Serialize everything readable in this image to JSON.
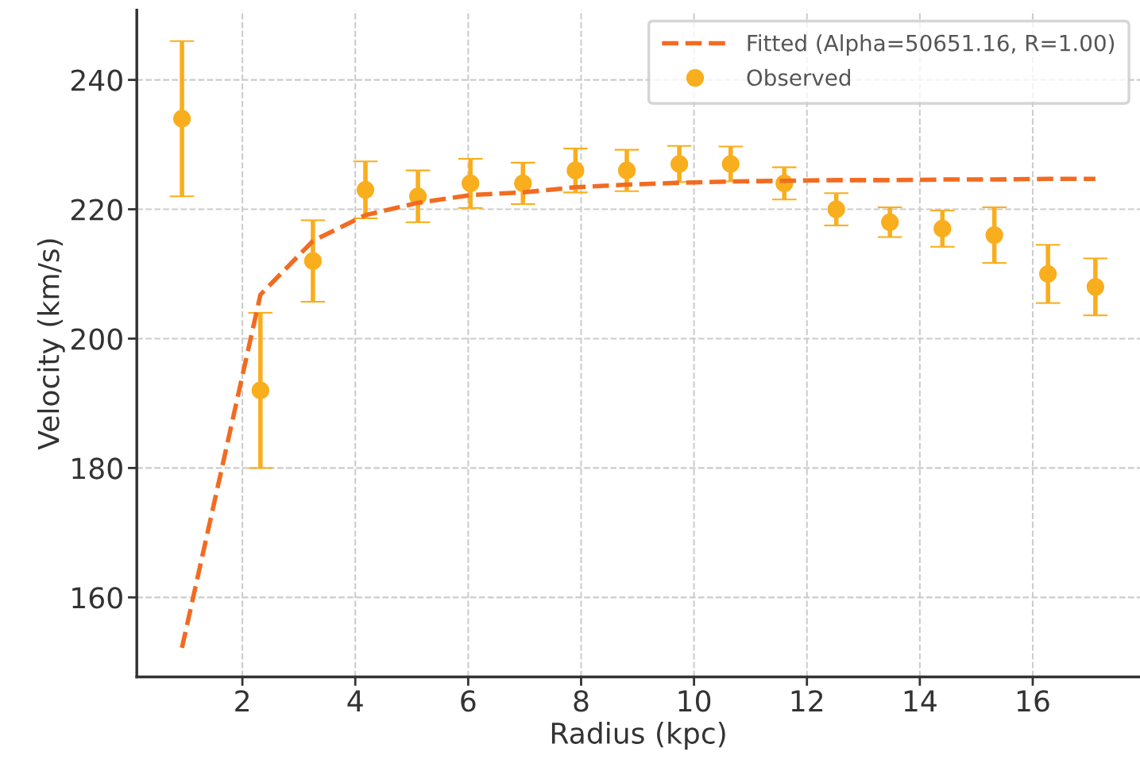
{
  "chart_data": {
    "type": "scatter",
    "xlabel": "Radius (kpc)",
    "ylabel": "Velocity (km/s)",
    "xlim": [
      0.13,
      17.9
    ],
    "ylim": [
      147.7,
      250.8
    ],
    "xticks": [
      2,
      4,
      6,
      8,
      10,
      12,
      14,
      16
    ],
    "yticks": [
      160,
      180,
      200,
      220,
      240
    ],
    "grid": true,
    "legend": "top right",
    "series": [
      {
        "name": "Fitted (Alpha=50651.16, R=1.00)",
        "type": "line",
        "line_style": "dashed",
        "marker": "none",
        "color": "#f26b21",
        "x": [
          0.93,
          2.32,
          3.25,
          4.18,
          5.11,
          6.04,
          6.97,
          7.9,
          8.81,
          9.74,
          10.65,
          11.6,
          12.52,
          13.47,
          14.4,
          15.32,
          16.27,
          17.11
        ],
        "values": [
          152.2,
          206.8,
          215.1,
          219.1,
          221.0,
          222.2,
          222.6,
          223.4,
          223.8,
          224.1,
          224.3,
          224.4,
          224.5,
          224.5,
          224.6,
          224.6,
          224.7,
          224.7
        ]
      },
      {
        "name": "Observed",
        "marker": "circle",
        "color": "#f9ae1d",
        "x": [
          0.93,
          2.32,
          3.25,
          4.18,
          5.11,
          6.04,
          6.97,
          7.9,
          8.81,
          9.74,
          10.65,
          11.6,
          12.52,
          13.47,
          14.4,
          15.32,
          16.27,
          17.11
        ],
        "values": [
          234,
          192,
          212,
          223,
          222,
          224,
          224,
          226,
          226,
          227,
          227,
          224,
          220,
          218,
          217,
          216,
          210,
          208
        ],
        "errors": [
          12,
          12,
          6.3,
          4.4,
          4,
          3.8,
          3.2,
          3.4,
          3.2,
          2.8,
          2.7,
          2.5,
          2.5,
          2.3,
          2.8,
          4.3,
          4.5,
          4.4
        ]
      }
    ]
  }
}
